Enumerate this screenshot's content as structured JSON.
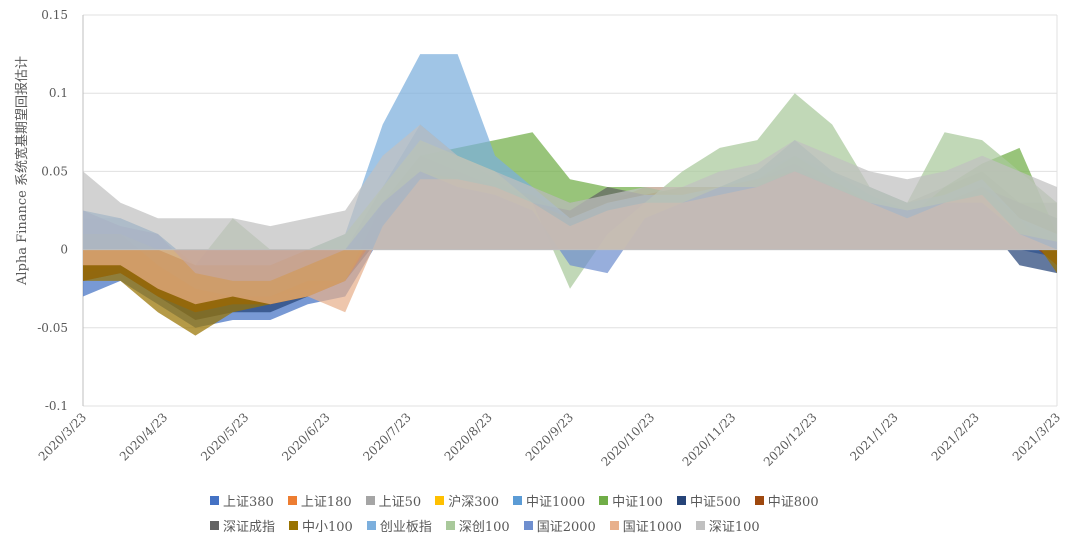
{
  "chart_data": {
    "type": "area",
    "title": "",
    "ylabel": "Alpha Finance 系统宽基期望回报估计",
    "xlabel": "",
    "ylim": [
      -0.1,
      0.15
    ],
    "yticks": [
      "0.15",
      "0.1",
      "0.05",
      "0",
      "-0.05",
      "-0.1"
    ],
    "ytick_values": [
      0.15,
      0.1,
      0.05,
      0,
      -0.05,
      -0.1
    ],
    "xticks": [
      "2020/3/23",
      "2020/4/23",
      "2020/5/23",
      "2020/6/23",
      "2020/7/23",
      "2020/8/23",
      "2020/9/23",
      "2020/10/23",
      "2020/11/23",
      "2020/12/23",
      "2021/1/23",
      "2021/2/23",
      "2021/3/23"
    ],
    "x": [
      "2020/3/23",
      "2020/4/6",
      "2020/4/20",
      "2020/5/4",
      "2020/5/18",
      "2020/6/1",
      "2020/6/15",
      "2020/6/29",
      "2020/7/13",
      "2020/7/27",
      "2020/8/10",
      "2020/8/24",
      "2020/9/7",
      "2020/9/21",
      "2020/10/5",
      "2020/10/19",
      "2020/11/2",
      "2020/11/16",
      "2020/11/30",
      "2020/12/14",
      "2020/12/28",
      "2021/1/11",
      "2021/1/25",
      "2021/2/8",
      "2021/2/22",
      "2021/3/8",
      "2021/3/22"
    ],
    "grid": true,
    "legend_position": "bottom",
    "series": [
      {
        "name": "上证380",
        "color": "#4472c4",
        "values": [
          -0.03,
          -0.02,
          -0.035,
          -0.05,
          -0.045,
          -0.045,
          -0.035,
          -0.03,
          0.01,
          0.04,
          0.04,
          0.035,
          0.03,
          0.01,
          0.02,
          0.03,
          0.03,
          0.035,
          0.04,
          0.05,
          0.04,
          0.03,
          0.02,
          0.025,
          0.03,
          0.0,
          -0.005
        ]
      },
      {
        "name": "上证180",
        "color": "#ed7d31",
        "values": [
          -0.015,
          -0.01,
          -0.03,
          -0.04,
          -0.035,
          -0.035,
          -0.03,
          -0.02,
          0.02,
          0.045,
          0.045,
          0.04,
          0.035,
          0.02,
          0.03,
          0.04,
          0.04,
          0.04,
          0.045,
          0.05,
          0.04,
          0.03,
          0.02,
          0.03,
          0.04,
          0.01,
          -0.01
        ]
      },
      {
        "name": "上证50",
        "color": "#a5a5a5",
        "values": [
          0.02,
          0.015,
          0.0,
          -0.02,
          -0.02,
          -0.02,
          -0.01,
          0.0,
          0.03,
          0.06,
          0.055,
          0.05,
          0.04,
          0.03,
          0.035,
          0.035,
          0.04,
          0.04,
          0.05,
          0.06,
          0.05,
          0.04,
          0.03,
          0.04,
          0.05,
          0.03,
          0.03
        ]
      },
      {
        "name": "沪深300",
        "color": "#ffc000",
        "values": [
          -0.01,
          -0.01,
          -0.025,
          -0.035,
          -0.03,
          -0.03,
          -0.025,
          -0.015,
          0.02,
          0.05,
          0.05,
          0.04,
          0.035,
          0.02,
          0.03,
          0.035,
          0.035,
          0.04,
          0.045,
          0.05,
          0.04,
          0.03,
          0.02,
          0.03,
          0.04,
          0.02,
          0.0
        ]
      },
      {
        "name": "中证1000",
        "color": "#5b9bd5",
        "values": [
          0.025,
          0.02,
          0.01,
          -0.01,
          -0.015,
          -0.02,
          -0.01,
          0.0,
          0.04,
          0.08,
          0.06,
          0.045,
          0.03,
          0.0,
          0.02,
          0.03,
          0.035,
          0.04,
          0.05,
          0.07,
          0.05,
          0.035,
          0.025,
          0.03,
          0.035,
          0.01,
          0.005
        ]
      },
      {
        "name": "中证100",
        "color": "#70ad47",
        "values": [
          0.01,
          0.01,
          -0.01,
          -0.03,
          -0.03,
          -0.03,
          -0.02,
          -0.005,
          0.03,
          0.06,
          0.065,
          0.07,
          0.075,
          0.045,
          0.04,
          0.04,
          0.035,
          0.04,
          0.045,
          0.06,
          0.045,
          0.03,
          0.02,
          0.04,
          0.055,
          0.065,
          0.01
        ]
      },
      {
        "name": "中证500",
        "color": "#264478",
        "values": [
          -0.02,
          -0.015,
          -0.03,
          -0.045,
          -0.04,
          -0.04,
          -0.03,
          -0.02,
          0.01,
          0.04,
          0.035,
          0.03,
          0.025,
          0.01,
          0.02,
          0.025,
          0.03,
          0.03,
          0.035,
          0.045,
          0.035,
          0.025,
          0.015,
          0.02,
          0.02,
          -0.01,
          -0.015
        ]
      },
      {
        "name": "中证800",
        "color": "#9e480e",
        "values": [
          -0.02,
          -0.015,
          -0.03,
          -0.04,
          -0.035,
          -0.035,
          -0.03,
          -0.02,
          0.015,
          0.045,
          0.045,
          0.04,
          0.03,
          0.015,
          0.025,
          0.03,
          0.03,
          0.035,
          0.04,
          0.05,
          0.04,
          0.03,
          0.02,
          0.025,
          0.035,
          0.01,
          -0.01
        ]
      },
      {
        "name": "深证成指",
        "color": "#636363",
        "values": [
          0.01,
          0.01,
          -0.01,
          -0.025,
          -0.03,
          -0.03,
          -0.02,
          -0.02,
          0.03,
          0.06,
          0.05,
          0.04,
          0.03,
          0.025,
          0.04,
          0.035,
          0.035,
          0.04,
          0.045,
          0.055,
          0.04,
          0.03,
          0.02,
          0.03,
          0.04,
          0.03,
          0.02
        ]
      },
      {
        "name": "中小100",
        "color": "#997300",
        "values": [
          -0.02,
          -0.02,
          -0.04,
          -0.055,
          -0.04,
          -0.035,
          -0.03,
          -0.02,
          0.02,
          0.05,
          0.045,
          0.04,
          0.03,
          0.02,
          0.03,
          0.035,
          0.04,
          0.04,
          0.045,
          0.05,
          0.04,
          0.03,
          0.02,
          0.03,
          0.04,
          0.02,
          -0.015
        ]
      },
      {
        "name": "创业板指",
        "color": "#7cafdd",
        "values": [
          0.02,
          0.02,
          0.01,
          -0.01,
          -0.01,
          -0.01,
          0.0,
          0.01,
          0.08,
          0.125,
          0.125,
          0.06,
          0.04,
          0.02,
          0.03,
          0.035,
          0.035,
          0.04,
          0.05,
          0.07,
          0.05,
          0.04,
          0.03,
          0.035,
          0.045,
          0.02,
          0.01
        ]
      },
      {
        "name": "深创100",
        "color": "#a9c99b",
        "values": [
          0.01,
          0.01,
          0.0,
          -0.01,
          0.02,
          0.0,
          0.0,
          0.01,
          0.04,
          0.07,
          0.06,
          0.05,
          0.03,
          -0.025,
          0.01,
          0.03,
          0.05,
          0.065,
          0.07,
          0.1,
          0.08,
          0.04,
          0.03,
          0.075,
          0.07,
          0.05,
          0.03
        ]
      },
      {
        "name": "国证2000",
        "color": "#6f8fcf",
        "values": [
          0.025,
          0.015,
          0.01,
          -0.015,
          -0.02,
          -0.02,
          -0.01,
          0.0,
          0.03,
          0.05,
          0.04,
          0.035,
          0.025,
          -0.01,
          -0.015,
          0.02,
          0.03,
          0.04,
          0.04,
          0.05,
          0.04,
          0.03,
          0.025,
          0.03,
          0.03,
          0.01,
          0.005
        ]
      },
      {
        "name": "国证1000",
        "color": "#e8b08c",
        "values": [
          -0.01,
          -0.01,
          -0.025,
          -0.035,
          -0.03,
          -0.035,
          -0.03,
          -0.04,
          0.015,
          0.045,
          0.045,
          0.04,
          0.03,
          0.015,
          0.025,
          0.03,
          0.03,
          0.035,
          0.04,
          0.05,
          0.04,
          0.03,
          0.02,
          0.03,
          0.035,
          0.01,
          0.0
        ]
      },
      {
        "name": "深证100",
        "color": "#c0c0c0",
        "values": [
          0.05,
          0.03,
          0.02,
          0.02,
          0.02,
          0.015,
          0.02,
          0.025,
          0.06,
          0.08,
          0.06,
          0.05,
          0.04,
          0.03,
          0.035,
          0.04,
          0.04,
          0.05,
          0.055,
          0.07,
          0.06,
          0.05,
          0.045,
          0.05,
          0.06,
          0.05,
          0.04
        ]
      }
    ]
  }
}
